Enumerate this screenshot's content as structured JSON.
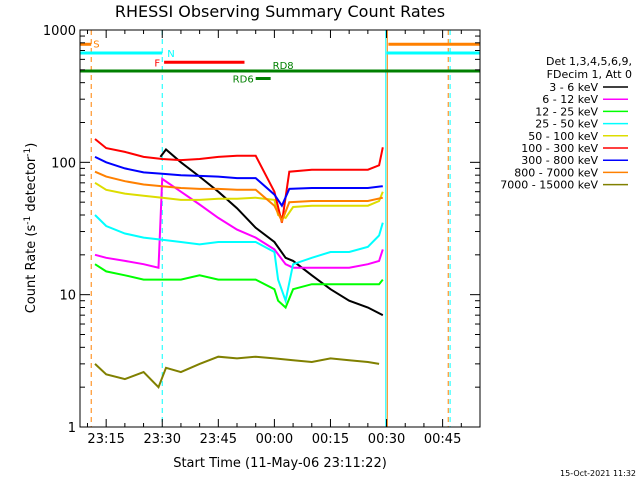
{
  "chart_data": {
    "type": "line",
    "title": "RHESSI Observing Summary Count Rates",
    "xlabel": "Start Time (11-May-06 23:11:22)",
    "ylabel": "Count Rate (s",
    "ylabel_sup": "-1",
    "ylabel_mid": " detector",
    "ylabel_sup2": "-1",
    "ylabel_end": ")",
    "yscale": "log",
    "ylim": [
      1,
      1000
    ],
    "xlim_minutes": [
      -7,
      100
    ],
    "x_ticks": [
      {
        "label": "23:15",
        "minute": 0
      },
      {
        "label": "23:30",
        "minute": 15
      },
      {
        "label": "23:45",
        "minute": 30
      },
      {
        "label": "00:00",
        "minute": 45
      },
      {
        "label": "00:15",
        "minute": 60
      },
      {
        "label": "00:30",
        "minute": 75
      },
      {
        "label": "00:45",
        "minute": 90
      }
    ],
    "y_ticks": [
      {
        "label": "1",
        "value": 1
      },
      {
        "label": "10",
        "value": 10
      },
      {
        "label": "100",
        "value": 100
      },
      {
        "label": "1000",
        "value": 1000
      }
    ],
    "legend": {
      "header1": "Det 1,3,4,5,6,9,",
      "header2": "FDecim 1, Att 0",
      "placement": "right"
    },
    "series": [
      {
        "name": "3 - 6 keV",
        "color": "#000000",
        "points": [
          [
            14.5,
            110
          ],
          [
            16,
            125
          ],
          [
            20,
            100
          ],
          [
            25,
            78
          ],
          [
            30,
            60
          ],
          [
            35,
            45
          ],
          [
            40,
            32
          ],
          [
            45,
            25
          ],
          [
            48,
            19
          ],
          [
            50,
            18
          ],
          [
            55,
            14
          ],
          [
            60,
            11
          ],
          [
            65,
            9
          ],
          [
            70,
            8
          ],
          [
            74,
            7
          ]
        ]
      },
      {
        "name": "6 - 12 keV",
        "color": "#ff00ff",
        "points": [
          [
            -3,
            20
          ],
          [
            0,
            19
          ],
          [
            5,
            18
          ],
          [
            10,
            17
          ],
          [
            14,
            16
          ],
          [
            15,
            75
          ],
          [
            20,
            60
          ],
          [
            25,
            48
          ],
          [
            30,
            38
          ],
          [
            35,
            31
          ],
          [
            40,
            27
          ],
          [
            45,
            22
          ],
          [
            48,
            17
          ],
          [
            50,
            16
          ],
          [
            55,
            16
          ],
          [
            60,
            16
          ],
          [
            65,
            16
          ],
          [
            70,
            17
          ],
          [
            73,
            18
          ],
          [
            74,
            22
          ]
        ]
      },
      {
        "name": "12 - 25 keV",
        "color": "#00ff00",
        "points": [
          [
            -3,
            17
          ],
          [
            0,
            15
          ],
          [
            5,
            14
          ],
          [
            10,
            13
          ],
          [
            15,
            13
          ],
          [
            20,
            13
          ],
          [
            25,
            14
          ],
          [
            30,
            13
          ],
          [
            35,
            13
          ],
          [
            40,
            13
          ],
          [
            45,
            11
          ],
          [
            46,
            9
          ],
          [
            48,
            8
          ],
          [
            50,
            11
          ],
          [
            55,
            12
          ],
          [
            60,
            12
          ],
          [
            65,
            12
          ],
          [
            70,
            12
          ],
          [
            73,
            12
          ],
          [
            74,
            13
          ]
        ]
      },
      {
        "name": "25 - 50 keV",
        "color": "#00ffff",
        "points": [
          [
            -3,
            40
          ],
          [
            0,
            33
          ],
          [
            5,
            29
          ],
          [
            10,
            27
          ],
          [
            15,
            26
          ],
          [
            20,
            25
          ],
          [
            25,
            24
          ],
          [
            30,
            25
          ],
          [
            35,
            25
          ],
          [
            40,
            25
          ],
          [
            45,
            21
          ],
          [
            46,
            13
          ],
          [
            48,
            9
          ],
          [
            50,
            17
          ],
          [
            55,
            19
          ],
          [
            60,
            21
          ],
          [
            65,
            21
          ],
          [
            70,
            23
          ],
          [
            73,
            28
          ],
          [
            74,
            35
          ]
        ]
      },
      {
        "name": "50 - 100 keV",
        "color": "#dddd00",
        "points": [
          [
            -3,
            70
          ],
          [
            0,
            62
          ],
          [
            5,
            58
          ],
          [
            10,
            56
          ],
          [
            15,
            54
          ],
          [
            20,
            52
          ],
          [
            25,
            52
          ],
          [
            30,
            53
          ],
          [
            35,
            53
          ],
          [
            40,
            54
          ],
          [
            45,
            52
          ],
          [
            46,
            40
          ],
          [
            48,
            38
          ],
          [
            50,
            46
          ],
          [
            55,
            47
          ],
          [
            60,
            47
          ],
          [
            65,
            47
          ],
          [
            70,
            47
          ],
          [
            73,
            51
          ],
          [
            74,
            60
          ]
        ]
      },
      {
        "name": "100 - 300 keV",
        "color": "#ff0000",
        "points": [
          [
            -3,
            150
          ],
          [
            0,
            128
          ],
          [
            5,
            120
          ],
          [
            10,
            110
          ],
          [
            15,
            106
          ],
          [
            20,
            104
          ],
          [
            25,
            106
          ],
          [
            30,
            110
          ],
          [
            35,
            112
          ],
          [
            40,
            112
          ],
          [
            45,
            60
          ],
          [
            47,
            35
          ],
          [
            49,
            85
          ],
          [
            55,
            88
          ],
          [
            60,
            88
          ],
          [
            65,
            88
          ],
          [
            70,
            88
          ],
          [
            73,
            95
          ],
          [
            74,
            130
          ]
        ]
      },
      {
        "name": "300 - 800 keV",
        "color": "#0000ff",
        "points": [
          [
            -3,
            110
          ],
          [
            0,
            100
          ],
          [
            5,
            90
          ],
          [
            10,
            84
          ],
          [
            15,
            82
          ],
          [
            20,
            80
          ],
          [
            25,
            79
          ],
          [
            30,
            78
          ],
          [
            35,
            76
          ],
          [
            40,
            76
          ],
          [
            45,
            57
          ],
          [
            47,
            47
          ],
          [
            49,
            63
          ],
          [
            55,
            64
          ],
          [
            60,
            64
          ],
          [
            65,
            64
          ],
          [
            70,
            64
          ],
          [
            74,
            66
          ]
        ]
      },
      {
        "name": "800 - 7000 keV",
        "color": "#ff8000",
        "points": [
          [
            -3,
            85
          ],
          [
            0,
            78
          ],
          [
            5,
            72
          ],
          [
            10,
            68
          ],
          [
            15,
            66
          ],
          [
            20,
            64
          ],
          [
            25,
            63
          ],
          [
            30,
            63
          ],
          [
            35,
            62
          ],
          [
            40,
            62
          ],
          [
            45,
            47
          ],
          [
            47,
            36
          ],
          [
            49,
            50
          ],
          [
            55,
            51
          ],
          [
            60,
            51
          ],
          [
            65,
            51
          ],
          [
            70,
            51
          ],
          [
            74,
            54
          ]
        ]
      },
      {
        "name": "7000 - 15000 keV",
        "color": "#808000",
        "points": [
          [
            -3,
            3.0
          ],
          [
            0,
            2.5
          ],
          [
            5,
            2.3
          ],
          [
            10,
            2.6
          ],
          [
            14,
            2.0
          ],
          [
            16,
            2.8
          ],
          [
            20,
            2.6
          ],
          [
            25,
            3.0
          ],
          [
            30,
            3.4
          ],
          [
            35,
            3.3
          ],
          [
            40,
            3.4
          ],
          [
            45,
            3.3
          ],
          [
            50,
            3.2
          ],
          [
            55,
            3.1
          ],
          [
            60,
            3.3
          ],
          [
            65,
            3.2
          ],
          [
            70,
            3.1
          ],
          [
            73,
            3.0
          ]
        ]
      }
    ],
    "flags": [
      {
        "label": "S",
        "color": "#ff8000",
        "segments": [
          [
            -7,
            -4
          ],
          [
            75.5,
            100
          ]
        ],
        "value": 780
      },
      {
        "label": "N",
        "color": "#00ffff",
        "segments": [
          [
            -7,
            15
          ],
          [
            75,
            100
          ]
        ],
        "value": 670
      },
      {
        "label": "F",
        "color": "#ff0000",
        "segments": [
          [
            15.5,
            37
          ]
        ],
        "value": 570
      },
      {
        "label": "RD8",
        "color": "#008000",
        "segments": [
          [
            -7,
            100
          ]
        ],
        "value": 490
      },
      {
        "label": "RD6",
        "color": "#008000",
        "segments": [
          [
            40,
            44
          ]
        ],
        "value": 430
      }
    ],
    "vertical_markers": [
      {
        "minute": -4,
        "color": "#ff8000",
        "style": "dashed"
      },
      {
        "minute": -7,
        "color": "#00ffff",
        "style": "solid"
      },
      {
        "minute": 15,
        "color": "#00ffff",
        "style": "dashed"
      },
      {
        "minute": 75.2,
        "color": "#ff8000",
        "style": "solid"
      },
      {
        "minute": 74.8,
        "color": "#00ffff",
        "style": "solid"
      },
      {
        "minute": 91.5,
        "color": "#ff8000",
        "style": "dashed"
      },
      {
        "minute": 92,
        "color": "#00ffff",
        "style": "dashed"
      }
    ]
  },
  "timestamp": "15-Oct-2021 11:32"
}
